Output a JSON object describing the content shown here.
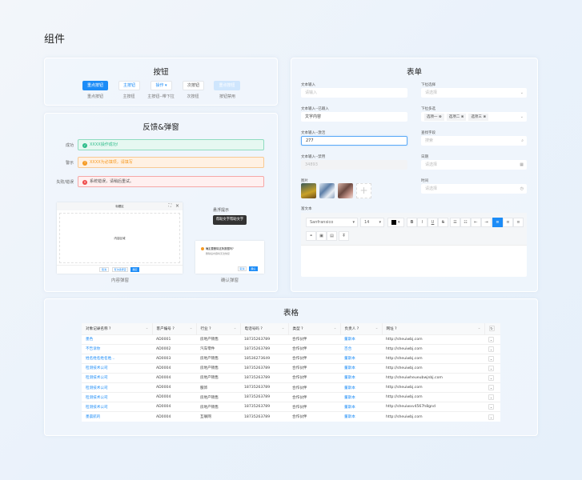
{
  "page_title": "组件",
  "colors": {
    "primary": "#1c8cf7",
    "success": "#2fbd8b",
    "warning": "#f59a23",
    "error": "#ee4a4a"
  },
  "buttons": {
    "title": "按钮",
    "items": [
      {
        "label": "重点按钮",
        "caption": "重点按钮"
      },
      {
        "label": "主按钮",
        "caption": "主按钮"
      },
      {
        "label": "操作",
        "caption": "主按钮--带下拉"
      },
      {
        "label": "次按钮",
        "caption": "次按钮"
      },
      {
        "label": "重点按钮",
        "caption": "按钮禁用"
      }
    ]
  },
  "feedback": {
    "title": "反馈&弹窗",
    "alerts": [
      {
        "label": "成功",
        "text": "XXXX操作成功!"
      },
      {
        "label": "警示",
        "text": "XXXX为必填项，请填写"
      },
      {
        "label": "失败/错误",
        "text": "系统错误，请稍后重试。"
      }
    ],
    "modal": {
      "title": "标题区",
      "content": "内容区域",
      "buttons": [
        "取消",
        "有次级按钮",
        "确定"
      ],
      "caption": "内容弹窗"
    },
    "tooltip": {
      "title": "悬浮提示",
      "text": "帮助文字帮助文字"
    },
    "confirm": {
      "title": "确定要删除这条数据吗?",
      "desc": "删除后内容将无法恢复",
      "buttons": [
        "取消",
        "确认"
      ],
      "caption": "确认弹窗"
    }
  },
  "form": {
    "title": "表单",
    "text_input": {
      "label": "文本输入",
      "placeholder": "请输入"
    },
    "text_filled": {
      "label": "文本输入--已输入",
      "value": "文字内容"
    },
    "text_active": {
      "label": "文本输入--激活",
      "value": "277"
    },
    "text_disabled": {
      "label": "文本输入--禁用",
      "value": "34893"
    },
    "images": {
      "label": "图片"
    },
    "select": {
      "label": "下拉选择",
      "placeholder": "请选择"
    },
    "multi": {
      "label": "下拉多选",
      "tags": [
        "选项一",
        "选项二",
        "选项三"
      ]
    },
    "search": {
      "label": "查找字段",
      "placeholder": "搜索"
    },
    "date": {
      "label": "日期",
      "placeholder": "请选择"
    },
    "time": {
      "label": "时间",
      "placeholder": "请选择"
    },
    "rich": {
      "label": "富文本",
      "font": "Sanfransico",
      "size": "14",
      "text_color": "#000000"
    }
  },
  "table": {
    "title": "表格",
    "columns": [
      "对象记录名称 ?",
      "客户编号 ?",
      "行业 ?",
      "电话号码 ?",
      "类型 ?",
      "负责人 ?",
      "网址 ?"
    ],
    "rows": [
      [
        "墨色",
        "AD0001",
        "房地产销售",
        "18735263789",
        "合作伙伴",
        "董斯本",
        "http://sheuiwbj.com"
      ],
      [
        "不告诉你",
        "AD0002",
        "汽车零件",
        "18735263789",
        "合作伙伴",
        "百合",
        "http://sheuiwbj.com"
      ],
      [
        "姓名姓名姓名姓...",
        "AD0003",
        "房地产销售",
        "18536273649",
        "合作伙伴",
        "董斯本",
        "http://sheuiwbj.com"
      ],
      [
        "检测技术公司",
        "AD0004",
        "房地产销售",
        "18735263789",
        "合作伙伴",
        "董斯本",
        "http://sheuiwbj.com"
      ],
      [
        "检测技术公司",
        "AD0004",
        "房地产销售",
        "18735263789",
        "合作伙伴",
        "董斯本",
        "http://sheuiwheueubwjnbj.com"
      ],
      [
        "检测技术公司",
        "AD0004",
        "服饰",
        "18735263789",
        "合作伙伴",
        "董斯本",
        "http://sheuiwbj.com"
      ],
      [
        "检测技术公司",
        "AD0004",
        "房地产销售",
        "18735263789",
        "合作伙伴",
        "董斯本",
        "http://sheuiwbj.com"
      ],
      [
        "检测技术公司",
        "AD0004",
        "房地产销售",
        "18735263789",
        "合作伙伴",
        "董斯本",
        "http://sheuiwxv4567h8gnd"
      ],
      [
        "墨晨航的",
        "AD0004",
        "互联网",
        "18735263789",
        "合作伙伴",
        "董斯本",
        "http://sheuiwbj.com"
      ]
    ]
  }
}
